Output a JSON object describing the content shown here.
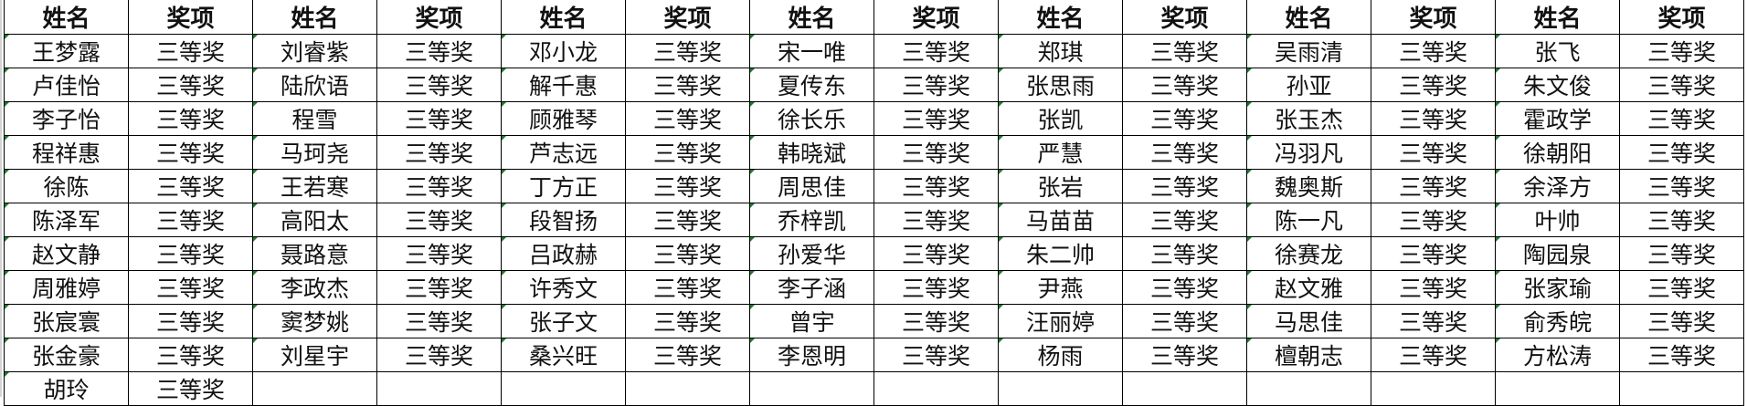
{
  "headers": {
    "name": "姓名",
    "award": "奖项"
  },
  "indicator_color": "#1e7b2e",
  "groups": [
    {
      "names": [
        "王梦露",
        "卢佳怡",
        "李子怡",
        "程祥惠",
        "徐陈",
        "陈泽军",
        "赵文静",
        "周雅婷",
        "张宸寰",
        "张金豪",
        "胡玲"
      ],
      "awards": [
        "三等奖",
        "三等奖",
        "三等奖",
        "三等奖",
        "三等奖",
        "三等奖",
        "三等奖",
        "三等奖",
        "三等奖",
        "三等奖",
        "三等奖"
      ]
    },
    {
      "names": [
        "刘睿紫",
        "陆欣语",
        "程雪",
        "马珂尧",
        "王若寒",
        "高阳太",
        "聂路意",
        "李政杰",
        "窦梦姚",
        "刘星宇"
      ],
      "awards": [
        "三等奖",
        "三等奖",
        "三等奖",
        "三等奖",
        "三等奖",
        "三等奖",
        "三等奖",
        "三等奖",
        "三等奖",
        "三等奖"
      ]
    },
    {
      "names": [
        "邓小龙",
        "解千惠",
        "顾雅琴",
        "芦志远",
        "丁方正",
        "段智扬",
        "吕政赫",
        "许秀文",
        "张子文",
        "桑兴旺"
      ],
      "awards": [
        "三等奖",
        "三等奖",
        "三等奖",
        "三等奖",
        "三等奖",
        "三等奖",
        "三等奖",
        "三等奖",
        "三等奖",
        "三等奖"
      ]
    },
    {
      "names": [
        "宋一唯",
        "夏传东",
        "徐长乐",
        "韩晓斌",
        "周思佳",
        "乔梓凯",
        "孙爱华",
        "李子涵",
        "曾宇",
        "李恩明"
      ],
      "awards": [
        "三等奖",
        "三等奖",
        "三等奖",
        "三等奖",
        "三等奖",
        "三等奖",
        "三等奖",
        "三等奖",
        "三等奖",
        "三等奖"
      ]
    },
    {
      "names": [
        "郑琪",
        "张思雨",
        "张凯",
        "严慧",
        "张岩",
        "马苗苗",
        "朱二帅",
        "尹燕",
        "汪丽婷",
        "杨雨"
      ],
      "awards": [
        "三等奖",
        "三等奖",
        "三等奖",
        "三等奖",
        "三等奖",
        "三等奖",
        "三等奖",
        "三等奖",
        "三等奖",
        "三等奖"
      ]
    },
    {
      "names": [
        "吴雨清",
        "孙亚",
        "张玉杰",
        "冯羽凡",
        "魏奥斯",
        "陈一凡",
        "徐赛龙",
        "赵文雅",
        "马思佳",
        "檀朝志"
      ],
      "awards": [
        "三等奖",
        "三等奖",
        "三等奖",
        "三等奖",
        "三等奖",
        "三等奖",
        "三等奖",
        "三等奖",
        "三等奖",
        "三等奖"
      ]
    },
    {
      "names": [
        "张飞",
        "朱文俊",
        "霍政学",
        "徐朝阳",
        "余泽方",
        "叶帅",
        "陶园泉",
        "张家瑜",
        "俞秀皖",
        "方松涛"
      ],
      "awards": [
        "三等奖",
        "三等奖",
        "三等奖",
        "三等奖",
        "三等奖",
        "三等奖",
        "三等奖",
        "三等奖",
        "三等奖",
        "三等奖"
      ]
    }
  ]
}
